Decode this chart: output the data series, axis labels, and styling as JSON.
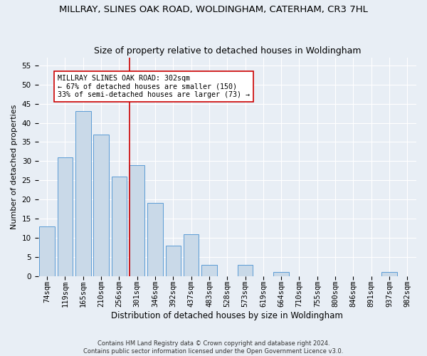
{
  "title": "MILLRAY, SLINES OAK ROAD, WOLDINGHAM, CATERHAM, CR3 7HL",
  "subtitle": "Size of property relative to detached houses in Woldingham",
  "xlabel": "Distribution of detached houses by size in Woldingham",
  "ylabel": "Number of detached properties",
  "categories": [
    "74sqm",
    "119sqm",
    "165sqm",
    "210sqm",
    "256sqm",
    "301sqm",
    "346sqm",
    "392sqm",
    "437sqm",
    "483sqm",
    "528sqm",
    "573sqm",
    "619sqm",
    "664sqm",
    "710sqm",
    "755sqm",
    "800sqm",
    "846sqm",
    "891sqm",
    "937sqm",
    "982sqm"
  ],
  "values": [
    13,
    31,
    43,
    37,
    26,
    29,
    19,
    8,
    11,
    3,
    0,
    3,
    0,
    1,
    0,
    0,
    0,
    0,
    0,
    1,
    0
  ],
  "bar_color": "#c9d9e8",
  "bar_edge_color": "#5b9bd5",
  "vline_color": "#cc0000",
  "annotation_text": "MILLRAY SLINES OAK ROAD: 302sqm\n← 67% of detached houses are smaller (150)\n33% of semi-detached houses are larger (73) →",
  "annotation_box_color": "#ffffff",
  "annotation_box_edge_color": "#cc0000",
  "ylim": [
    0,
    57
  ],
  "yticks": [
    0,
    5,
    10,
    15,
    20,
    25,
    30,
    35,
    40,
    45,
    50,
    55
  ],
  "footer_line1": "Contains HM Land Registry data © Crown copyright and database right 2024.",
  "footer_line2": "Contains public sector information licensed under the Open Government Licence v3.0.",
  "background_color": "#e8eef5",
  "title_fontsize": 9.5,
  "subtitle_fontsize": 9,
  "xlabel_fontsize": 8.5,
  "ylabel_fontsize": 8,
  "tick_fontsize": 7.5
}
